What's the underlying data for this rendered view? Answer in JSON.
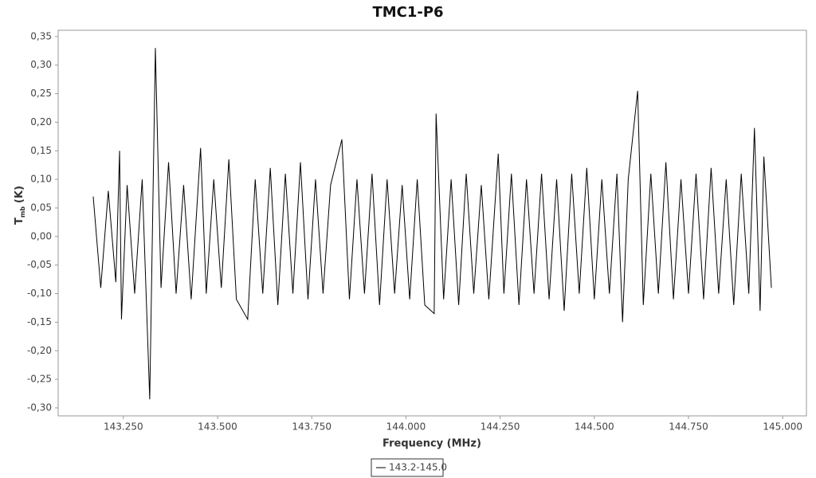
{
  "chart_data": {
    "type": "line",
    "title": "TMC1-P6",
    "xlabel": "Frequency (MHz)",
    "ylabel": "T",
    "ylabel_sub": "mb",
    "ylabel_unit": "(K)",
    "x": [
      143.17,
      143.19,
      143.21,
      143.23,
      143.24,
      143.245,
      143.26,
      143.28,
      143.3,
      143.32,
      143.335,
      143.35,
      143.37,
      143.39,
      143.41,
      143.43,
      143.455,
      143.47,
      143.49,
      143.51,
      143.53,
      143.55,
      143.58,
      143.6,
      143.62,
      143.64,
      143.66,
      143.68,
      143.7,
      143.72,
      143.74,
      143.76,
      143.78,
      143.8,
      143.83,
      143.85,
      143.87,
      143.89,
      143.91,
      143.93,
      143.95,
      143.97,
      143.99,
      144.01,
      144.03,
      144.05,
      144.075,
      144.08,
      144.1,
      144.12,
      144.14,
      144.16,
      144.18,
      144.2,
      144.22,
      144.245,
      144.26,
      144.28,
      144.3,
      144.32,
      144.34,
      144.36,
      144.38,
      144.4,
      144.42,
      144.44,
      144.46,
      144.48,
      144.5,
      144.52,
      144.54,
      144.56,
      144.575,
      144.59,
      144.615,
      144.63,
      144.65,
      144.67,
      144.69,
      144.71,
      144.73,
      144.75,
      144.77,
      144.79,
      144.81,
      144.83,
      144.85,
      144.87,
      144.89,
      144.91,
      144.925,
      144.94,
      144.95,
      144.97
    ],
    "series": [
      {
        "name": "143.2-145.0",
        "color": "#000000",
        "values": [
          0.07,
          -0.09,
          0.08,
          -0.08,
          0.15,
          -0.145,
          0.09,
          -0.1,
          0.1,
          -0.285,
          0.33,
          -0.09,
          0.13,
          -0.1,
          0.09,
          -0.11,
          0.155,
          -0.1,
          0.1,
          -0.09,
          0.135,
          -0.11,
          -0.145,
          0.1,
          -0.1,
          0.12,
          -0.12,
          0.11,
          -0.1,
          0.13,
          -0.11,
          0.1,
          -0.1,
          0.09,
          0.17,
          -0.11,
          0.1,
          -0.1,
          0.11,
          -0.12,
          0.1,
          -0.1,
          0.09,
          -0.11,
          0.1,
          -0.12,
          -0.135,
          0.215,
          -0.11,
          0.1,
          -0.12,
          0.11,
          -0.1,
          0.09,
          -0.11,
          0.145,
          -0.1,
          0.11,
          -0.12,
          0.1,
          -0.1,
          0.11,
          -0.11,
          0.1,
          -0.13,
          0.11,
          -0.1,
          0.12,
          -0.11,
          0.1,
          -0.1,
          0.11,
          -0.15,
          0.1,
          0.255,
          -0.12,
          0.11,
          -0.1,
          0.13,
          -0.11,
          0.1,
          -0.1,
          0.11,
          -0.11,
          0.12,
          -0.1,
          0.1,
          -0.12,
          0.11,
          -0.1,
          0.19,
          -0.13,
          0.14,
          -0.09
        ]
      }
    ],
    "xlim": [
      143.077,
      145.063
    ],
    "xticks": [
      {
        "value": 143.25,
        "label": "143.250"
      },
      {
        "value": 143.5,
        "label": "143.500"
      },
      {
        "value": 143.75,
        "label": "143.750"
      },
      {
        "value": 144,
        "label": "144.000"
      },
      {
        "value": 144.25,
        "label": "144.250"
      },
      {
        "value": 144.5,
        "label": "144.500"
      },
      {
        "value": 144.75,
        "label": "144.750"
      },
      {
        "value": 145,
        "label": "145.000"
      }
    ],
    "ylim": [
      -0.314,
      0.361
    ],
    "yticks": [
      {
        "value": 0.35,
        "label": "0,35"
      },
      {
        "value": 0.3,
        "label": "0,30"
      },
      {
        "value": 0.25,
        "label": "0,25"
      },
      {
        "value": 0.2,
        "label": "0,20"
      },
      {
        "value": 0.15,
        "label": "0,15"
      },
      {
        "value": 0.1,
        "label": "0,10"
      },
      {
        "value": 0.05,
        "label": "0,05"
      },
      {
        "value": 0,
        "label": "0,00"
      },
      {
        "value": -0.05,
        "label": "-0,05"
      },
      {
        "value": -0.1,
        "label": "-0,10"
      },
      {
        "value": -0.15,
        "label": "-0,15"
      },
      {
        "value": -0.2,
        "label": "-0,20"
      },
      {
        "value": -0.25,
        "label": "-0,25"
      },
      {
        "value": -0.3,
        "label": "-0,30"
      }
    ],
    "grid": false
  }
}
